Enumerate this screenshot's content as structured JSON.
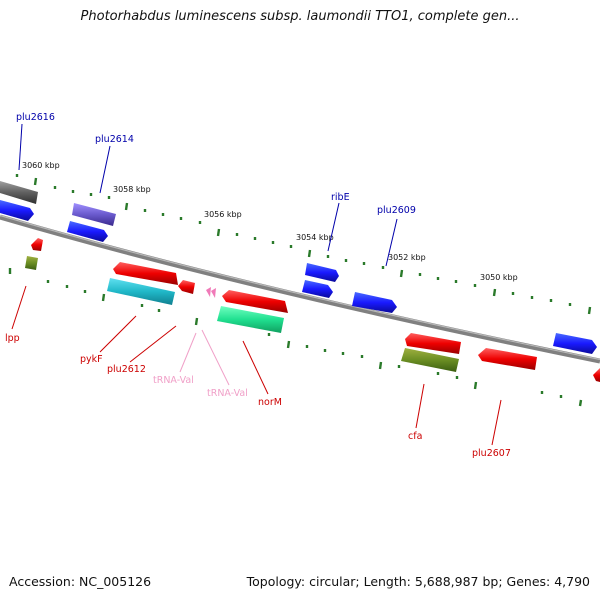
{
  "title": "Photorhabdus luminescens subsp. laumondii TTO1, complete gen...",
  "footer": {
    "accession": "Accession: NC_005126",
    "summary": "Topology: circular; Length: 5,688,987 bp; Genes: 4,790"
  },
  "colors": {
    "backbone": "#808080",
    "tick": "#2a7a2a",
    "label_red": "#cc0000",
    "label_blue": "#0000aa",
    "label_pink": "#f0a0c8"
  },
  "scale": {
    "labels": [
      "3060 kbp",
      "3058 kbp",
      "3056 kbp",
      "3054 kbp",
      "3052 kbp",
      "3050 kbp"
    ]
  },
  "genes": [
    {
      "label": "plu2616",
      "color": "#0000aa"
    },
    {
      "label": "plu2614",
      "color": "#0000aa"
    },
    {
      "label": "ribE",
      "color": "#0000aa"
    },
    {
      "label": "plu2609",
      "color": "#0000aa"
    },
    {
      "label": "lpp",
      "color": "#cc0000"
    },
    {
      "label": "pykF",
      "color": "#cc0000"
    },
    {
      "label": "plu2612",
      "color": "#cc0000"
    },
    {
      "label": "tRNA-Val",
      "color": "#f0a0c8"
    },
    {
      "label": "tRNA-Val",
      "color": "#f0a0c8"
    },
    {
      "label": "norM",
      "color": "#cc0000"
    },
    {
      "label": "cfa",
      "color": "#cc0000"
    },
    {
      "label": "plu2607",
      "color": "#cc0000"
    }
  ]
}
